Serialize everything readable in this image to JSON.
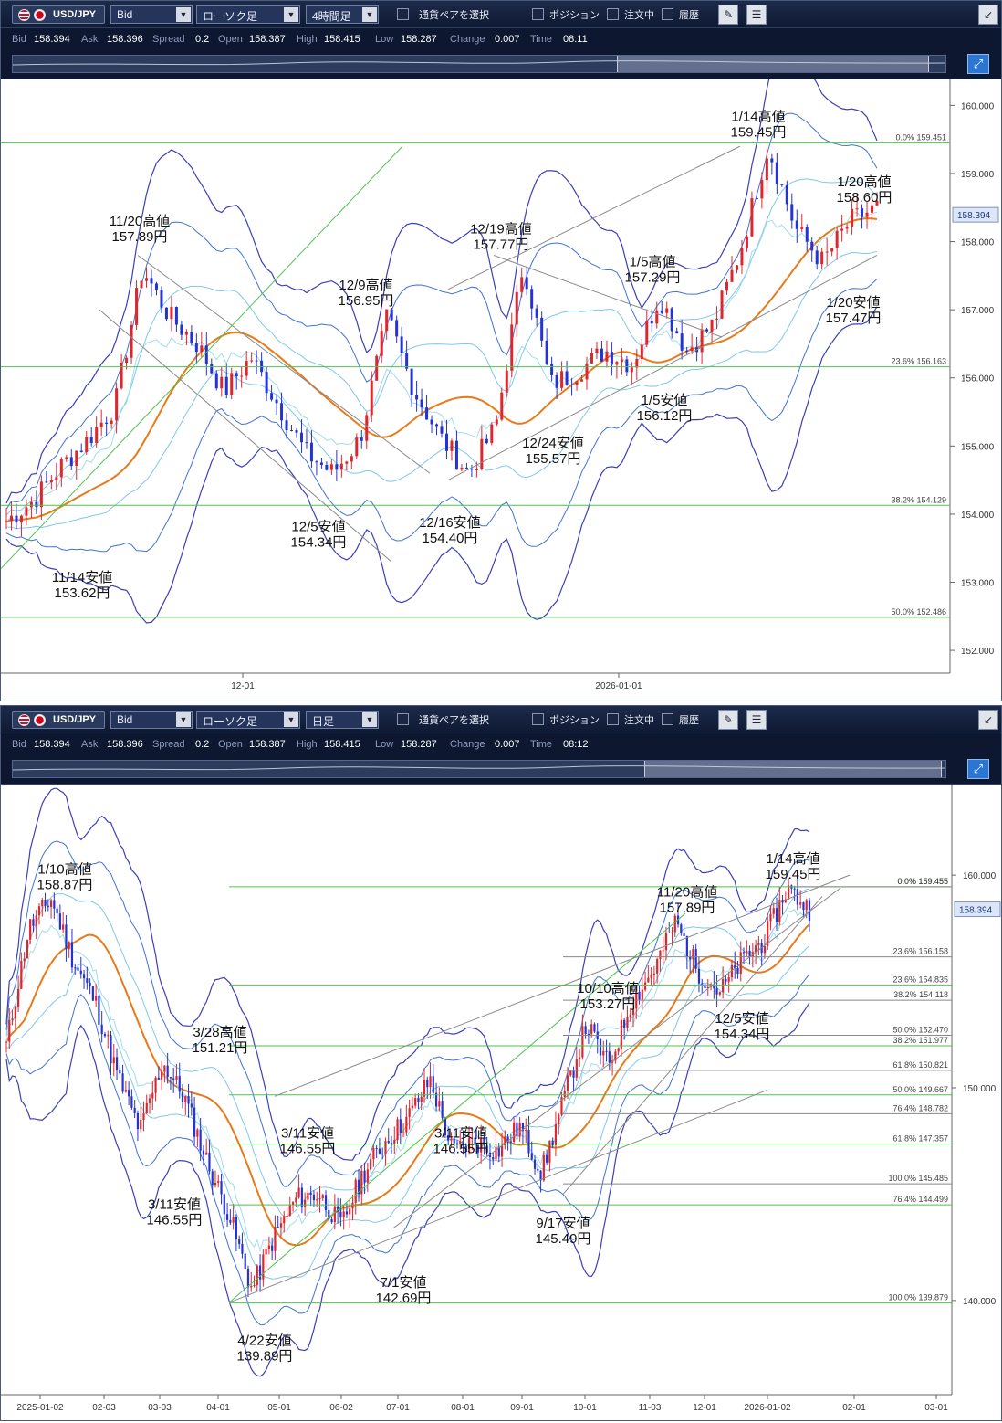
{
  "panels": [
    {
      "symbol": "USD/JPY",
      "price_type": "Bid",
      "chart_type": "ローソク足",
      "timeframe": "4時間足",
      "pair_select": "通貨ペアを選択",
      "position_label": "ポジション",
      "orders_label": "注文中",
      "history_label": "履歴",
      "quote": {
        "bid_label": "Bid",
        "bid": "158.394",
        "ask_label": "Ask",
        "ask": "158.396",
        "spread_label": "Spread",
        "spread": "0.2",
        "open_label": "Open",
        "open": "158.387",
        "high_label": "High",
        "high": "158.415",
        "low_label": "Low",
        "low": "158.287",
        "change_label": "Change",
        "change": "0.007",
        "time_label": "Time",
        "time": "08:11"
      },
      "current_price": "158.394"
    },
    {
      "symbol": "USD/JPY",
      "price_type": "Bid",
      "chart_type": "ローソク足",
      "timeframe": "日足",
      "pair_select": "通貨ペアを選択",
      "position_label": "ポジション",
      "orders_label": "注文中",
      "history_label": "履歴",
      "quote": {
        "bid_label": "Bid",
        "bid": "158.394",
        "ask_label": "Ask",
        "ask": "158.396",
        "spread_label": "Spread",
        "spread": "0.2",
        "open_label": "Open",
        "open": "158.387",
        "high_label": "High",
        "high": "158.415",
        "low_label": "Low",
        "low": "158.287",
        "change_label": "Change",
        "change": "0.007",
        "time_label": "Time",
        "time": "08:12"
      },
      "current_price": "158.394"
    }
  ],
  "chart_data": [
    {
      "type": "candlestick",
      "title": "",
      "ylim": [
        151.8,
        160.3
      ],
      "y_ticks": [
        "152.000",
        "153.000",
        "154.000",
        "155.000",
        "156.000",
        "157.000",
        "158.000",
        "159.000",
        "160.000"
      ],
      "x_ticks": [
        "12-01",
        "2026-01-01"
      ],
      "close_path": [
        153.9,
        154.2,
        154.7,
        155.1,
        155.6,
        157.6,
        156.9,
        156.5,
        155.8,
        156.3,
        155.6,
        154.9,
        154.6,
        155.1,
        156.9,
        155.8,
        155.1,
        154.6,
        155.3,
        157.7,
        155.9,
        156.1,
        156.4,
        156.2,
        157.2,
        156.4,
        156.8,
        157.9,
        159.4,
        158.2,
        157.7,
        158.3,
        158.5
      ],
      "fibonacci": [
        {
          "label": "0.0%",
          "value": 159.451
        },
        {
          "label": "23.6%",
          "value": 156.163
        },
        {
          "label": "38.2%",
          "value": 154.129
        },
        {
          "label": "50.0%",
          "value": 152.486
        }
      ],
      "annotations": [
        {
          "title": "1/14高値",
          "price": "159.45円",
          "value": 159.45,
          "pos": "above"
        },
        {
          "title": "1/20高値",
          "price": "158.60円",
          "value": 158.6,
          "pos": "above"
        },
        {
          "title": "11/20高値",
          "price": "157.89円",
          "value": 157.89,
          "pos": "above"
        },
        {
          "title": "12/19高値",
          "price": "157.77円",
          "value": 157.77,
          "pos": "above"
        },
        {
          "title": "1/5高値",
          "price": "157.29円",
          "value": 157.29,
          "pos": "above"
        },
        {
          "title": "12/9高値",
          "price": "156.95円",
          "value": 156.95,
          "pos": "above"
        },
        {
          "title": "1/20安値",
          "price": "157.47円",
          "value": 157.47,
          "pos": "below"
        },
        {
          "title": "1/5安値",
          "price": "156.12円",
          "value": 156.12,
          "pos": "below"
        },
        {
          "title": "12/24安値",
          "price": "155.57円",
          "value": 155.57,
          "pos": "below"
        },
        {
          "title": "12/5安値",
          "price": "154.34円",
          "value": 154.34,
          "pos": "below"
        },
        {
          "title": "12/16安値",
          "price": "154.40円",
          "value": 154.4,
          "pos": "below"
        },
        {
          "title": "11/14安値",
          "price": "153.62円",
          "value": 153.62,
          "pos": "below"
        }
      ]
    },
    {
      "type": "candlestick",
      "title": "",
      "ylim": [
        136.0,
        164.0
      ],
      "y_ticks": [
        "140.000",
        "150.000",
        "160.000"
      ],
      "x_ticks": [
        "2025-01-02",
        "02-03",
        "03-03",
        "04-01",
        "05-01",
        "06-02",
        "07-01",
        "08-01",
        "09-01",
        "10-01",
        "11-03",
        "12-01",
        "2026-01-02",
        "02-01",
        "03-01"
      ],
      "close_path": [
        152.0,
        157.5,
        158.9,
        156.0,
        154.0,
        150.5,
        148.0,
        151.2,
        149.5,
        146.5,
        144.0,
        140.5,
        143.0,
        144.8,
        145.0,
        143.5,
        146.0,
        147.5,
        148.6,
        150.4,
        147.0,
        147.5,
        147.0,
        148.2,
        146.0,
        149.5,
        153.0,
        151.0,
        154.0,
        155.5,
        157.8,
        155.5,
        154.5,
        156.0,
        157.0,
        159.4,
        158.4
      ],
      "fibonacci": [
        {
          "label": "0.0%",
          "value": 159.455
        },
        {
          "label": "0.0%",
          "value": 159.455
        },
        {
          "label": "23.6%",
          "value": 156.158
        },
        {
          "label": "23.6%",
          "value": 154.835
        },
        {
          "label": "38.2%",
          "value": 154.118
        },
        {
          "label": "50.0%",
          "value": 152.47
        },
        {
          "label": "38.2%",
          "value": 151.977
        },
        {
          "label": "61.8%",
          "value": 150.821
        },
        {
          "label": "50.0%",
          "value": 149.667
        },
        {
          "label": "76.4%",
          "value": 148.782
        },
        {
          "label": "61.8%",
          "value": 147.357
        },
        {
          "label": "100.0%",
          "value": 145.485
        },
        {
          "label": "76.4%",
          "value": 144.499
        },
        {
          "label": "100.0%",
          "value": 139.879
        }
      ],
      "annotations": [
        {
          "title": "1/10高値",
          "price": "158.87円",
          "value": 158.87,
          "pos": "above"
        },
        {
          "title": "1/14高値",
          "price": "159.45円",
          "value": 159.45,
          "pos": "above"
        },
        {
          "title": "11/20高値",
          "price": "157.89円",
          "value": 157.89,
          "pos": "above"
        },
        {
          "title": "10/10高値",
          "price": "153.27円",
          "value": 153.27,
          "pos": "above"
        },
        {
          "title": "3/28高値",
          "price": "151.21円",
          "value": 151.21,
          "pos": "above"
        },
        {
          "title": "3/11安値",
          "price": "146.55円",
          "value": 146.55,
          "pos": "above"
        },
        {
          "title": "3/11安値",
          "price": "146.55円",
          "value": 146.55,
          "pos": "above"
        },
        {
          "title": "3/11安値",
          "price": "146.55円",
          "value": 146.55,
          "pos": "below"
        },
        {
          "title": "12/5安値",
          "price": "154.34円",
          "value": 154.34,
          "pos": "below"
        },
        {
          "title": "9/17安値",
          "price": "145.49円",
          "value": 145.49,
          "pos": "below"
        },
        {
          "title": "7/1安値",
          "price": "142.69円",
          "value": 142.69,
          "pos": "below"
        },
        {
          "title": "4/22安値",
          "price": "139.89円",
          "value": 139.89,
          "pos": "below"
        }
      ]
    }
  ]
}
